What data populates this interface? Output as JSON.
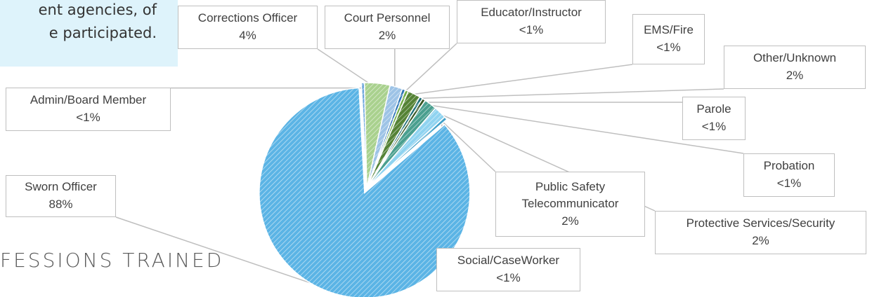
{
  "chart_data": {
    "type": "pie",
    "annotations": [
      "ent agencies, of",
      "e participated.",
      "FESSIONS TRAINED"
    ],
    "categories": [
      "Admin/Board Member",
      "Corrections Officer",
      "Court Personnel",
      "Educator/Instructor",
      "EMS/Fire",
      "Other/Unknown",
      "Parole",
      "Probation",
      "Protective Services/Security",
      "Public Safety Telecommunicator",
      "Social/CaseWorker",
      "Sworn Officer"
    ],
    "values": [
      0.5,
      4,
      2,
      0.5,
      0.5,
      2,
      0.5,
      0.5,
      2,
      2,
      0.5,
      88
    ],
    "value_labels": [
      "<1%",
      "4%",
      "2%",
      "<1%",
      "<1%",
      "2%",
      "<1%",
      "<1%",
      "2%",
      "2%",
      "<1%",
      "88%"
    ],
    "colors": [
      "#6fa8dc",
      "#a9d18e",
      "#9dc3e6",
      "#2e75b6",
      "#70ad47",
      "#548235",
      "#1f6f78",
      "#375623",
      "#4a9f8f",
      "#8fd3f0",
      "#41a0c8",
      "#5bb4e5"
    ]
  }
}
